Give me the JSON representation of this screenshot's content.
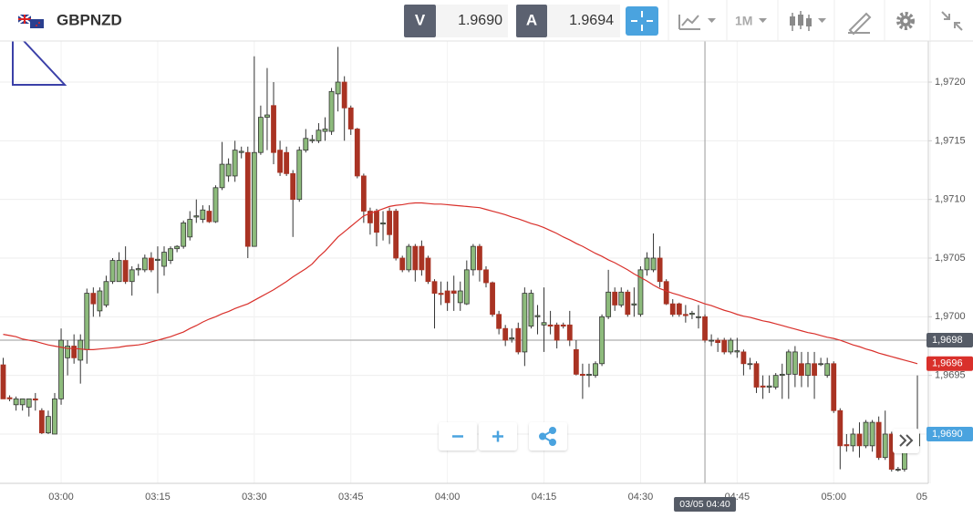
{
  "toolbar": {
    "symbol": "GBPNZD",
    "bid_label": "V",
    "bid": "1.9690",
    "ask_label": "A",
    "ask": "1.9694",
    "timeframe": "1M"
  },
  "chart_data": {
    "type": "candlestick",
    "categories": [
      null,
      null,
      null,
      null,
      null,
      null,
      null,
      null,
      null,
      "03:00",
      null,
      null,
      null,
      null,
      null,
      null,
      null,
      null,
      null,
      null,
      null,
      null,
      null,
      null,
      "03:15",
      null,
      null,
      null,
      null,
      null,
      null,
      null,
      null,
      null,
      null,
      null,
      null,
      null,
      null,
      "03:30",
      null,
      null,
      null,
      null,
      null,
      null,
      null,
      null,
      null,
      null,
      null,
      null,
      null,
      null,
      "03:45",
      null,
      null,
      null,
      null,
      null,
      null,
      null,
      null,
      null,
      null,
      null,
      null,
      null,
      null,
      "04:00",
      null,
      null,
      null,
      null,
      null,
      null,
      null,
      null,
      null,
      null,
      null,
      null,
      null,
      null,
      "04:15",
      null,
      null,
      null,
      null,
      null,
      null,
      null,
      null,
      null,
      null,
      null,
      null,
      null,
      null,
      "04:30",
      null,
      null,
      null,
      null,
      null,
      null,
      null,
      null,
      null,
      null,
      null,
      null,
      null,
      null,
      "04:45",
      null,
      null,
      null,
      null,
      null,
      null,
      null,
      null,
      null,
      null,
      null,
      null,
      null,
      null,
      "05:00",
      null,
      null,
      null,
      null,
      null,
      null,
      null,
      null,
      null,
      null,
      null,
      null,
      null,
      null,
      "05"
    ],
    "ohlc": [
      [
        1.96959,
        1.96965,
        1.9693,
        1.9693
      ],
      [
        1.96931,
        1.96933,
        1.96928,
        1.9693
      ],
      [
        1.96925,
        1.96932,
        1.9692,
        1.9693
      ],
      [
        1.96925,
        1.9693,
        1.9692,
        1.9693
      ],
      [
        1.96923,
        1.9693,
        1.96915,
        1.9693
      ],
      [
        1.9693,
        1.96935,
        1.9692,
        1.96929
      ],
      [
        1.9692,
        1.96922,
        1.969,
        1.96901
      ],
      [
        1.96901,
        1.9692,
        1.969,
        1.96915
      ],
      [
        1.969,
        1.96935,
        1.969,
        1.9693
      ],
      [
        1.9693,
        1.9699,
        1.96925,
        1.9698
      ],
      [
        1.96965,
        1.9698,
        1.9695,
        1.96975
      ],
      [
        1.96975,
        1.96985,
        1.9696,
        1.96965
      ],
      [
        1.96963,
        1.96985,
        1.96943,
        1.9698
      ],
      [
        1.96972,
        1.97024,
        1.9696,
        1.9702
      ],
      [
        1.9702,
        1.97025,
        1.97,
        1.97011
      ],
      [
        1.97005,
        1.97025,
        1.97,
        1.97022
      ],
      [
        1.9701,
        1.97035,
        1.97008,
        1.9703
      ],
      [
        1.9703,
        1.9705,
        1.97028,
        1.97048
      ],
      [
        1.9703,
        1.97055,
        1.9703,
        1.97048
      ],
      [
        1.97048,
        1.9706,
        1.97028,
        1.9703
      ],
      [
        1.9703,
        1.97043,
        1.97018,
        1.9704
      ],
      [
        1.9704,
        1.97045,
        1.97035,
        1.97041
      ],
      [
        1.9704,
        1.97053,
        1.97038,
        1.9705
      ],
      [
        1.9705,
        1.97055,
        1.97038,
        1.9704
      ],
      [
        1.97048,
        1.9706,
        1.9702,
        1.97049
      ],
      [
        1.97043,
        1.9706,
        1.97035,
        1.97055
      ],
      [
        1.97048,
        1.9706,
        1.97045,
        1.97058
      ],
      [
        1.97058,
        1.97061,
        1.97055,
        1.9706
      ],
      [
        1.9706,
        1.97082,
        1.97058,
        1.9708
      ],
      [
        1.97068,
        1.9709,
        1.97065,
        1.97083
      ],
      [
        1.97085,
        1.971,
        1.9708,
        1.97086
      ],
      [
        1.97083,
        1.97095,
        1.9708,
        1.97091
      ],
      [
        1.9709,
        1.97095,
        1.9708,
        1.97081
      ],
      [
        1.97081,
        1.97112,
        1.9708,
        1.9711
      ],
      [
        1.9711,
        1.97149,
        1.97108,
        1.9713
      ],
      [
        1.9712,
        1.97135,
        1.97115,
        1.9713
      ],
      [
        1.9712,
        1.9715,
        1.97115,
        1.97142
      ],
      [
        1.9714,
        1.97145,
        1.97135,
        1.97141
      ],
      [
        1.9714,
        1.97145,
        1.9705,
        1.9706
      ],
      [
        1.9706,
        1.97222,
        1.9706,
        1.9714
      ],
      [
        1.9714,
        1.9718,
        1.97138,
        1.9717
      ],
      [
        1.9717,
        1.97212,
        1.97142,
        1.97172
      ],
      [
        1.9718,
        1.972,
        1.9713,
        1.9714
      ],
      [
        1.97142,
        1.9715,
        1.9712,
        1.97123
      ],
      [
        1.9714,
        1.97145,
        1.9712,
        1.97122
      ],
      [
        1.97122,
        1.97125,
        1.97068,
        1.971
      ],
      [
        1.971,
        1.97145,
        1.97098,
        1.97142
      ],
      [
        1.97142,
        1.9716,
        1.9714,
        1.97152
      ],
      [
        1.9715,
        1.97155,
        1.97148,
        1.97151
      ],
      [
        1.9715,
        1.97165,
        1.97148,
        1.97159
      ],
      [
        1.97158,
        1.9717,
        1.9715,
        1.9716
      ],
      [
        1.97158,
        1.97195,
        1.97155,
        1.97192
      ],
      [
        1.9719,
        1.9723,
        1.97175,
        1.972
      ],
      [
        1.972,
        1.97205,
        1.9715,
        1.97178
      ],
      [
        1.97178,
        1.9718,
        1.97155,
        1.9716
      ],
      [
        1.9716,
        1.97161,
        1.97118,
        1.9712
      ],
      [
        1.9712,
        1.97122,
        1.9708,
        1.9709
      ],
      [
        1.9709,
        1.97093,
        1.9707,
        1.9708
      ],
      [
        1.9709,
        1.97092,
        1.9706,
        1.97072
      ],
      [
        1.97079,
        1.9709,
        1.97065,
        1.9708
      ],
      [
        1.9709,
        1.97093,
        1.97062,
        1.9707
      ],
      [
        1.9709,
        1.97092,
        1.97048,
        1.9705
      ],
      [
        1.9705,
        1.97052,
        1.97038,
        1.9704
      ],
      [
        1.9704,
        1.97062,
        1.97038,
        1.9706
      ],
      [
        1.9706,
        1.97062,
        1.9703,
        1.9704
      ],
      [
        1.9706,
        1.97065,
        1.97035,
        1.9704
      ],
      [
        1.9705,
        1.97052,
        1.97028,
        1.9703
      ],
      [
        1.9703,
        1.97032,
        1.9699,
        1.9702
      ],
      [
        1.9702,
        1.9703,
        1.9701,
        1.97019
      ],
      [
        1.97022,
        1.9703,
        1.97005,
        1.97012
      ],
      [
        1.97022,
        1.97035,
        1.97005,
        1.9702
      ],
      [
        1.97012,
        1.9703,
        1.97005,
        1.97022
      ],
      [
        1.97011,
        1.97048,
        1.9701,
        1.9704
      ],
      [
        1.9704,
        1.97062,
        1.97035,
        1.9706
      ],
      [
        1.9706,
        1.97062,
        1.9703,
        1.9704
      ],
      [
        1.9704,
        1.97043,
        1.97025,
        1.97029
      ],
      [
        1.97029,
        1.9703,
        1.97,
        1.97002
      ],
      [
        1.97002,
        1.97005,
        1.96985,
        1.9699
      ],
      [
        1.9699,
        1.96993,
        1.96975,
        1.9698
      ],
      [
        1.96981,
        1.9699,
        1.96978,
        1.96982
      ],
      [
        1.9699,
        1.96995,
        1.96968,
        1.9697
      ],
      [
        1.9697,
        1.97025,
        1.96958,
        1.9702
      ],
      [
        1.96992,
        1.97023,
        1.9699,
        1.9702
      ],
      [
        1.97,
        1.9701,
        1.96985,
        1.97001
      ],
      [
        1.96993,
        1.97025,
        1.9697,
        1.96995
      ],
      [
        1.96993,
        1.97005,
        1.96985,
        1.96992
      ],
      [
        1.96993,
        1.96995,
        1.96973,
        1.9698
      ],
      [
        1.96993,
        1.96995,
        1.9699,
        1.96992
      ],
      [
        1.96993,
        1.97005,
        1.96975,
        1.9698
      ],
      [
        1.96972,
        1.9698,
        1.9695,
        1.96951
      ],
      [
        1.96951,
        1.9696,
        1.9693,
        1.9695
      ],
      [
        1.9695,
        1.9696,
        1.9694,
        1.96951
      ],
      [
        1.9695,
        1.96962,
        1.96948,
        1.9696
      ],
      [
        1.9696,
        1.97002,
        1.96958,
        1.97
      ],
      [
        1.97,
        1.9704,
        1.96998,
        1.97021
      ],
      [
        1.97021,
        1.97025,
        1.97005,
        1.9701
      ],
      [
        1.9701,
        1.97025,
        1.97008,
        1.97021
      ],
      [
        1.97021,
        1.97023,
        1.97,
        1.97002
      ],
      [
        1.9701,
        1.97025,
        1.97,
        1.97011
      ],
      [
        1.97002,
        1.97043,
        1.97,
        1.9704
      ],
      [
        1.9704,
        1.97055,
        1.97035,
        1.9705
      ],
      [
        1.9704,
        1.97071,
        1.97038,
        1.9705
      ],
      [
        1.9705,
        1.9706,
        1.97025,
        1.9703
      ],
      [
        1.9703,
        1.97032,
        1.9701,
        1.97011
      ],
      [
        1.97011,
        1.97015,
        1.97,
        1.97002
      ],
      [
        1.97011,
        1.97012,
        1.97,
        1.97002
      ],
      [
        1.97002,
        1.9701,
        1.96995,
        1.97001
      ],
      [
        1.97002,
        1.97005,
        1.96998,
        1.97003
      ],
      [
        1.97,
        1.9701,
        1.9699,
        1.97
      ],
      [
        1.97,
        1.97002,
        1.96978,
        1.9698
      ],
      [
        1.9698,
        1.96985,
        1.96975,
        1.9698
      ],
      [
        1.9698,
        1.96982,
        1.9697,
        1.96978
      ],
      [
        1.9698,
        1.96982,
        1.96968,
        1.9697
      ],
      [
        1.9697,
        1.96982,
        1.96968,
        1.9698
      ],
      [
        1.9697,
        1.96982,
        1.96965,
        1.96971
      ],
      [
        1.9697,
        1.96972,
        1.9695,
        1.9696
      ],
      [
        1.9696,
        1.96965,
        1.96955,
        1.9696
      ],
      [
        1.9696,
        1.96962,
        1.96935,
        1.9694
      ],
      [
        1.96941,
        1.9695,
        1.9693,
        1.9694
      ],
      [
        1.9694,
        1.9695,
        1.96935,
        1.96941
      ],
      [
        1.9694,
        1.96952,
        1.96938,
        1.9695
      ],
      [
        1.9695,
        1.9696,
        1.9693,
        1.96951
      ],
      [
        1.96951,
        1.96972,
        1.9693,
        1.9697
      ],
      [
        1.96951,
        1.96975,
        1.9694,
        1.9697
      ],
      [
        1.9696,
        1.9697,
        1.9694,
        1.9695
      ],
      [
        1.9695,
        1.9697,
        1.9694,
        1.9696
      ],
      [
        1.9696,
        1.9697,
        1.9693,
        1.9695
      ],
      [
        1.9696,
        1.96965,
        1.96958,
        1.9696
      ],
      [
        1.9695,
        1.96965,
        1.96948,
        1.9696
      ],
      [
        1.9696,
        1.96962,
        1.96918,
        1.9692
      ],
      [
        1.9692,
        1.96922,
        1.9687,
        1.9689
      ],
      [
        1.96891,
        1.969,
        1.96885,
        1.9689
      ],
      [
        1.9689,
        1.96905,
        1.96885,
        1.969
      ],
      [
        1.969,
        1.9691,
        1.9688,
        1.9689
      ],
      [
        1.9689,
        1.96912,
        1.96888,
        1.9691
      ],
      [
        1.9689,
        1.96912,
        1.96885,
        1.9691
      ],
      [
        1.9691,
        1.96915,
        1.96878,
        1.9688
      ],
      [
        1.9688,
        1.9692,
        1.96878,
        1.969
      ],
      [
        1.969,
        1.96902,
        1.96868,
        1.9687
      ],
      [
        1.9687,
        1.96872,
        1.96868,
        1.9687
      ],
      [
        1.9687,
        1.96892,
        1.96868,
        1.9689
      ],
      [
        1.96888,
        1.96902,
        1.96885,
        1.96895
      ],
      [
        1.9689,
        1.9695,
        1.96888,
        1.969
      ],
      null,
      null
    ],
    "up_color": "#8dbb7c",
    "down_color": "#a93323",
    "ma": {
      "color": "#d9302b",
      "last_label": "1,9696",
      "values": [
        1.96985,
        1.96984,
        1.96983,
        1.96981,
        1.9698,
        1.96979,
        1.969775,
        1.96976,
        1.96975,
        1.96974,
        1.96973,
        1.96973,
        1.969725,
        1.96972,
        1.96972,
        1.969725,
        1.96973,
        1.969735,
        1.96974,
        1.96975,
        1.969755,
        1.96976,
        1.96977,
        1.969785,
        1.9698,
        1.969815,
        1.96983,
        1.96985,
        1.96987,
        1.9699,
        1.969925,
        1.969955,
        1.96998,
        1.97,
        1.970025,
        1.970045,
        1.97007,
        1.97009,
        1.97011,
        1.97014,
        1.97017,
        1.9702,
        1.97023,
        1.970265,
        1.9703,
        1.97034,
        1.970375,
        1.97041,
        1.97045,
        1.97051,
        1.97056,
        1.97062,
        1.97068,
        1.970725,
        1.97077,
        1.970815,
        1.97086,
        1.97088,
        1.9709,
        1.97092,
        1.97094,
        1.97095,
        1.970955,
        1.970965,
        1.97097,
        1.97097,
        1.970965,
        1.97096,
        1.97096,
        1.970955,
        1.97095,
        1.970945,
        1.97094,
        1.970935,
        1.97093,
        1.970915,
        1.9709,
        1.970885,
        1.97087,
        1.97085,
        1.970835,
        1.970815,
        1.970795,
        1.97078,
        1.97076,
        1.970735,
        1.97071,
        1.97068,
        1.970655,
        1.970625,
        1.9706,
        1.97057,
        1.97054,
        1.970515,
        1.970485,
        1.97046,
        1.97043,
        1.9704,
        1.970365,
        1.970335,
        1.970305,
        1.97027,
        1.97024,
        1.97022,
        1.9702,
        1.970185,
        1.970165,
        1.97015,
        1.97013,
        1.97011,
        1.970095,
        1.970075,
        1.970055,
        1.97004,
        1.97002,
        1.970005,
        1.969995,
        1.96998,
        1.969965,
        1.969955,
        1.96994,
        1.969925,
        1.96991,
        1.969895,
        1.96988,
        1.969865,
        1.969855,
        1.96984,
        1.969825,
        1.969815,
        1.9698,
        1.96978,
        1.96976,
        1.969745,
        1.969725,
        1.96971,
        1.96969,
        1.969675,
        1.96966,
        1.969645,
        1.96963,
        1.969615,
        1.9696,
        null,
        null
      ]
    },
    "last_label": "1,9690",
    "crosshair": {
      "price": 1.9698,
      "price_label": "1,9698",
      "time_label": "03/05 04:40"
    },
    "ylim": [
      1.96858,
      1.97235
    ],
    "yticks": [
      {
        "value": 1.969,
        "label": "1,9690"
      },
      {
        "value": 1.9695,
        "label": "1,9695"
      },
      {
        "value": 1.97,
        "label": "1,9700"
      },
      {
        "value": 1.9705,
        "label": "1,9705"
      },
      {
        "value": 1.971,
        "label": "1,9710"
      },
      {
        "value": 1.9715,
        "label": "1,9715"
      },
      {
        "value": 1.972,
        "label": "1,9720"
      }
    ],
    "grid": true
  }
}
